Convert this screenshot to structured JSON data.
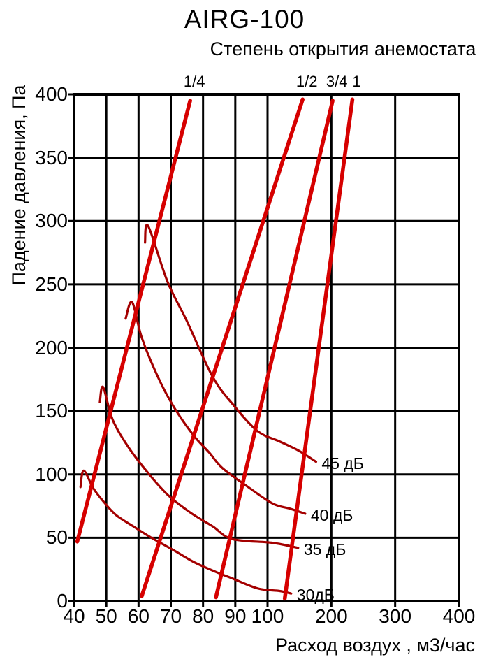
{
  "figure": {
    "title": "AIRG-100",
    "subtitle": "Степень открытия анемостата",
    "x_axis_label": "Расход воздух , м3/час",
    "y_axis_label": "Падение давления, Па"
  },
  "chart_data": {
    "type": "line",
    "title": "AIRG-100",
    "subtitle": "Степень открытия анемостата",
    "xlabel": "Расход воздух , м3/час",
    "ylabel": "Падение давления, Па",
    "xlim": [
      40,
      400
    ],
    "ylim": [
      0,
      400
    ],
    "grid": true,
    "legend_position": "inline-labels",
    "x_scale": "segmented: 40-100 equal spacing per 10 m3/h, 100-400 equal spacing per 100 m3/h",
    "x_ticks": [
      40,
      50,
      60,
      70,
      80,
      90,
      100,
      200,
      300,
      400
    ],
    "y_ticks": [
      0,
      50,
      100,
      150,
      200,
      250,
      300,
      350,
      400
    ],
    "colors": {
      "opening_lines": "#d60000",
      "noise_curves": "#a40000",
      "grid": "#000000",
      "background": "#ffffff"
    },
    "opening_series_note": "straight steep lines, degree of anemostat opening; points are [flow m3/h, pressure drop Pa]",
    "opening_series": [
      {
        "name": "1/4",
        "points": [
          [
            41,
            47
          ],
          [
            76,
            395
          ]
        ]
      },
      {
        "name": "1/2",
        "points": [
          [
            61,
            4
          ],
          [
            155,
            396
          ]
        ]
      },
      {
        "name": "3/4",
        "points": [
          [
            84,
            3
          ],
          [
            202,
            395
          ]
        ]
      },
      {
        "name": "1",
        "points": [
          [
            127,
            2
          ],
          [
            233,
            396
          ]
        ]
      }
    ],
    "noise_series_note": "constant noise level curves with small hook at left end; points are [flow m3/h, pressure drop Pa]",
    "noise_series": [
      {
        "name": "30дБ",
        "points": [
          [
            42,
            90
          ],
          [
            43,
            103
          ],
          [
            46,
            89
          ],
          [
            49,
            79
          ],
          [
            53,
            68
          ],
          [
            59,
            58
          ],
          [
            64,
            50
          ],
          [
            71,
            40
          ],
          [
            77,
            31
          ],
          [
            84,
            23
          ],
          [
            89,
            18
          ],
          [
            97,
            10
          ],
          [
            119,
            8
          ],
          [
            137,
            6
          ]
        ]
      },
      {
        "name": "35 дБ",
        "points": [
          [
            48,
            157
          ],
          [
            49,
            169
          ],
          [
            52,
            143
          ],
          [
            57,
            121
          ],
          [
            63,
            101
          ],
          [
            69,
            84
          ],
          [
            76,
            70
          ],
          [
            83,
            59
          ],
          [
            89,
            49
          ],
          [
            108,
            46
          ],
          [
            148,
            42
          ]
        ]
      },
      {
        "name": "40 дБ",
        "points": [
          [
            56,
            223
          ],
          [
            58,
            236
          ],
          [
            61,
            208
          ],
          [
            66,
            177
          ],
          [
            71,
            153
          ],
          [
            77,
            131
          ],
          [
            82,
            117
          ],
          [
            86,
            105
          ],
          [
            94,
            90
          ],
          [
            108,
            77
          ],
          [
            135,
            73
          ],
          [
            159,
            69
          ]
        ]
      },
      {
        "name": "45 дБ",
        "points": [
          [
            62,
            283
          ],
          [
            63,
            296
          ],
          [
            69,
            252
          ],
          [
            75,
            221
          ],
          [
            83,
            177
          ],
          [
            90,
            153
          ],
          [
            97,
            134
          ],
          [
            119,
            126
          ],
          [
            148,
            119
          ],
          [
            176,
            110
          ]
        ]
      }
    ]
  }
}
